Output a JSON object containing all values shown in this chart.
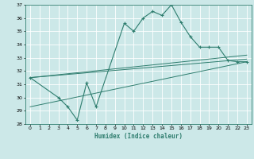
{
  "xlabel": "Humidex (Indice chaleur)",
  "bg_color": "#cce8e8",
  "grid_color": "#ffffff",
  "line_color": "#2e7d6e",
  "xlim": [
    -0.5,
    23.5
  ],
  "ylim": [
    28,
    37
  ],
  "xticks": [
    0,
    1,
    2,
    3,
    4,
    5,
    6,
    7,
    8,
    9,
    10,
    11,
    12,
    13,
    14,
    15,
    16,
    17,
    18,
    19,
    20,
    21,
    22,
    23
  ],
  "yticks": [
    28,
    29,
    30,
    31,
    32,
    33,
    34,
    35,
    36,
    37
  ],
  "zigzag_x": [
    0,
    3,
    4,
    5,
    6,
    7,
    10,
    11,
    12,
    13,
    14,
    15,
    16,
    17,
    18,
    19,
    20,
    21,
    22,
    23
  ],
  "zigzag_y": [
    31.5,
    30.0,
    29.3,
    28.3,
    31.1,
    29.3,
    35.6,
    35.0,
    36.0,
    36.5,
    36.2,
    37.0,
    35.7,
    34.6,
    33.8,
    33.8,
    33.8,
    32.8,
    32.7,
    32.7
  ],
  "trend1_x": [
    0,
    23
  ],
  "trend1_y": [
    31.5,
    33.2
  ],
  "trend2_x": [
    0,
    23
  ],
  "trend2_y": [
    31.5,
    32.9
  ],
  "trend3_x": [
    0,
    23
  ],
  "trend3_y": [
    29.3,
    32.7
  ]
}
